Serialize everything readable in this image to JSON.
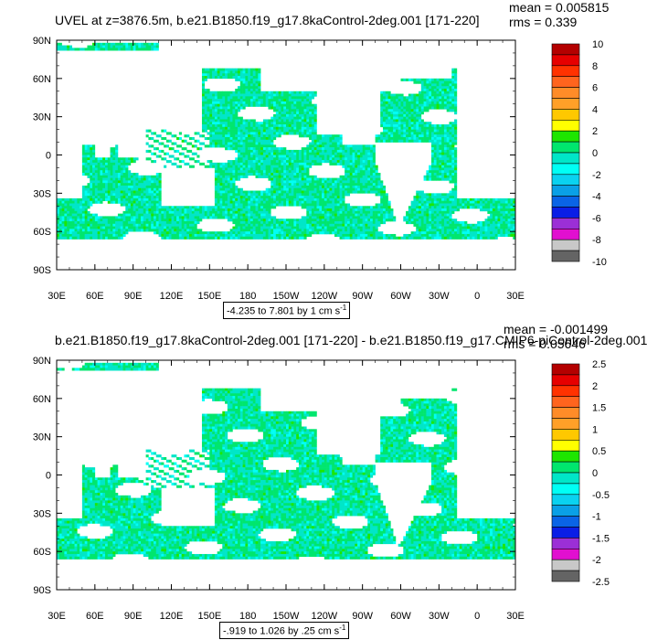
{
  "colors": {
    "palette": [
      "#646464",
      "#c8c8c8",
      "#e10fd0",
      "#9b2fd6",
      "#0a1ee6",
      "#0a64e6",
      "#0aa0e6",
      "#0ad2f0",
      "#00fff5",
      "#00e6c8",
      "#00e66e",
      "#1ee600",
      "#ffff00",
      "#ffc800",
      "#ffa028",
      "#ff8c28",
      "#ff641e",
      "#ff3200",
      "#e60000",
      "#b40000"
    ],
    "land": "#ffffff"
  },
  "map_axes": {
    "lat_labels": [
      "90N",
      "60N",
      "30N",
      "0",
      "30S",
      "60S",
      "90S"
    ],
    "lon_labels": [
      "30E",
      "60E",
      "90E",
      "120E",
      "150E",
      "180",
      "150W",
      "120W",
      "90W",
      "60W",
      "30W",
      "0",
      "30E"
    ]
  },
  "panels": [
    {
      "title": "UVEL at z=3876.5m, b.e21.B1850.f19_g17.8kaControl-2deg.001 [171-220]",
      "mean": "mean = 0.005815",
      "rms": "rms = 0.339",
      "units_text": "-4.235 to 7.801 by 1 cm s",
      "units_exp": "-1",
      "colorbar_labels": [
        "10",
        "8",
        "6",
        "4",
        "2",
        "0",
        "-2",
        "-4",
        "-6",
        "-8",
        "-10"
      ]
    },
    {
      "title": "b.e21.B1850.f19_g17.8kaControl-2deg.001 [171-220] - b.e21.B1850.f19_g17.CMIP6-piControl-2deg.001",
      "mean": "mean = -0.001499",
      "rms": "rms = 0.05646",
      "units_text": "-.919 to 1.026 by .25 cm s",
      "units_exp": "-1",
      "colorbar_labels": [
        "2.5",
        "2",
        "1.5",
        "1",
        "0.5",
        "0",
        "-0.5",
        "-1",
        "-1.5",
        "-2",
        "-2.5"
      ]
    }
  ],
  "chart_data": {
    "type": "heatmap",
    "grid": false,
    "legend_placement": "right",
    "maps": [
      {
        "variable": "UVEL",
        "depth": "z=3876.5m",
        "lat_range": [
          -90,
          90
        ],
        "lon_range": [
          30,
          390
        ],
        "colorbar_range": [
          -10,
          10
        ],
        "dominant_value_range": [
          -2,
          2
        ]
      },
      {
        "variable": "UVEL difference",
        "lat_range": [
          -90,
          90
        ],
        "lon_range": [
          30,
          390
        ],
        "colorbar_range": [
          -2.5,
          2.5
        ],
        "dominant_value_range": [
          -0.5,
          0.5
        ]
      }
    ]
  }
}
